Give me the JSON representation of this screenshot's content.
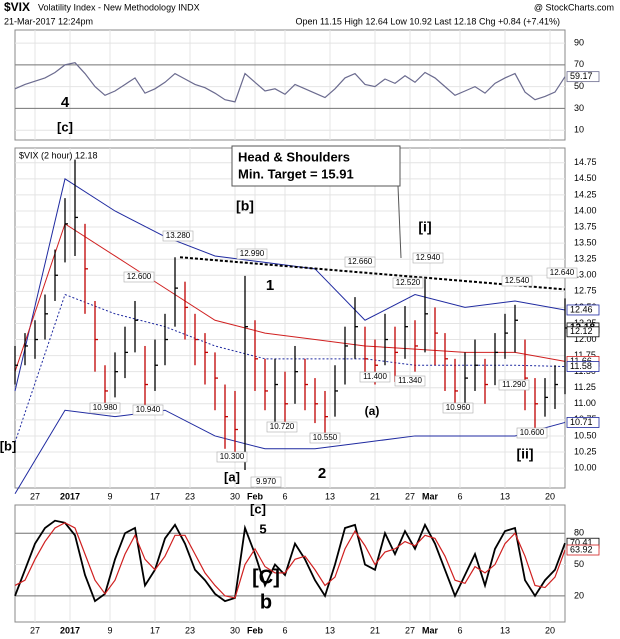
{
  "header": {
    "symbol": "$VIX",
    "name": "Volatility Index - New Methodology INDX",
    "source": "@ StockCharts.com",
    "date": "21-Mar-2017 12:24pm",
    "quote": "Open 11.15 High 12.64 Low 10.92 Last 12.18 Chg +0.84 (+7.41%)"
  },
  "chart_data": [
    {
      "type": "line",
      "xlim": [
        0,
        110
      ],
      "ylim": [
        1,
        102
      ],
      "yticks": [
        10,
        30,
        50,
        70,
        90
      ],
      "reference_lines": [
        70,
        30
      ],
      "grid": true,
      "x": [
        0,
        2,
        4,
        6,
        8,
        10,
        12,
        14,
        16,
        18,
        20,
        22,
        24,
        26,
        28,
        30,
        32,
        34,
        36,
        38,
        40,
        42,
        44,
        46,
        48,
        50,
        52,
        54,
        56,
        58,
        60,
        62,
        64,
        66,
        68,
        70,
        72,
        74,
        76,
        78,
        80,
        82,
        84,
        86,
        88,
        90,
        92,
        94,
        96,
        98,
        100,
        102,
        104,
        106,
        108,
        110
      ],
      "series": [
        {
          "color": "#6b6b8f",
          "values": [
            48,
            52,
            55,
            58,
            63,
            70,
            72,
            62,
            50,
            42,
            46,
            52,
            58,
            44,
            48,
            54,
            62,
            57,
            52,
            49,
            44,
            38,
            36,
            62,
            54,
            46,
            48,
            43,
            52,
            48,
            44,
            40,
            48,
            58,
            62,
            52,
            50,
            57,
            53,
            60,
            54,
            63,
            58,
            50,
            42,
            46,
            50,
            44,
            53,
            58,
            62,
            45,
            38,
            41,
            45,
            59.17
          ],
          "last_label": "59.17"
        }
      ],
      "waves": [
        {
          "text": "4",
          "color": "#9400d3"
        },
        {
          "text": "[c]",
          "color": "#c00000"
        }
      ]
    },
    {
      "type": "ohlc",
      "label": "$VIX (2 hour) 12.18",
      "xlim": [
        0,
        110
      ],
      "ylim": [
        9.69,
        14.98
      ],
      "grid": true,
      "yticks": [
        {
          "value": 10,
          "label": "10.00"
        },
        {
          "value": 10.25,
          "label": "10.25"
        },
        {
          "value": 10.5,
          "label": "10.50"
        },
        {
          "value": 10.75,
          "label": "10.75"
        },
        {
          "value": 11,
          "label": "11.00"
        },
        {
          "value": 11.25,
          "label": "11.25"
        },
        {
          "value": 11.5,
          "label": "11.50"
        },
        {
          "value": 11.75,
          "label": "11.75"
        },
        {
          "value": 12,
          "label": "12.00"
        },
        {
          "value": 12.25,
          "label": "12.25"
        },
        {
          "value": 12.5,
          "label": "12.50"
        },
        {
          "value": 12.75,
          "label": "12.75"
        },
        {
          "value": 13,
          "label": "13.00"
        },
        {
          "value": 13.25,
          "label": "13.25"
        },
        {
          "value": 13.5,
          "label": "13.50"
        },
        {
          "value": 13.75,
          "label": "13.75"
        },
        {
          "value": 14,
          "label": "14.00"
        },
        {
          "value": 14.25,
          "label": "14.25"
        },
        {
          "value": 14.5,
          "label": "14.50"
        },
        {
          "value": 14.75,
          "label": "14.75"
        }
      ],
      "xticks": [
        {
          "value": 4,
          "label": "27"
        },
        {
          "value": 11,
          "label": "2017"
        },
        {
          "value": 19,
          "label": "9"
        },
        {
          "value": 28,
          "label": "17"
        },
        {
          "value": 35,
          "label": "23"
        },
        {
          "value": 44,
          "label": "30"
        },
        {
          "value": 48,
          "label": "Feb"
        },
        {
          "value": 54,
          "label": "6"
        },
        {
          "value": 63,
          "label": "13"
        },
        {
          "value": 72,
          "label": "21"
        },
        {
          "value": 79,
          "label": "27"
        },
        {
          "value": 83,
          "label": "Mar"
        },
        {
          "value": 89,
          "label": "6"
        },
        {
          "value": 98,
          "label": "13"
        },
        {
          "value": 107,
          "label": "20"
        }
      ],
      "x": [
        0,
        2,
        4,
        6,
        8,
        10,
        12,
        14,
        16,
        18,
        20,
        22,
        24,
        26,
        28,
        30,
        32,
        34,
        36,
        38,
        40,
        42,
        44,
        46,
        48,
        50,
        52,
        54,
        56,
        58,
        60,
        62,
        64,
        66,
        68,
        70,
        72,
        74,
        76,
        78,
        80,
        82,
        84,
        86,
        88,
        90,
        92,
        94,
        96,
        98,
        100,
        102,
        104,
        106,
        108,
        110
      ],
      "high": [
        11.9,
        12.1,
        12.3,
        12.7,
        13.4,
        14.2,
        14.8,
        13.8,
        12.6,
        11.6,
        11.8,
        12.2,
        12.6,
        11.9,
        12.0,
        12.4,
        13.28,
        12.9,
        12.4,
        12.1,
        11.8,
        11.3,
        11.2,
        12.99,
        12.3,
        11.7,
        11.7,
        11.5,
        11.9,
        11.7,
        11.4,
        11.2,
        11.6,
        12.2,
        12.66,
        12.2,
        12.0,
        12.4,
        12.2,
        12.52,
        12.3,
        12.94,
        12.5,
        12.1,
        11.7,
        11.8,
        12.0,
        11.7,
        12.1,
        12.4,
        12.54,
        12.0,
        11.4,
        11.4,
        11.6,
        12.64
      ],
      "low": [
        11.3,
        11.6,
        11.7,
        12.0,
        12.6,
        13.2,
        13.3,
        12.4,
        11.5,
        10.98,
        11.1,
        11.4,
        11.8,
        10.94,
        11.2,
        11.6,
        12.2,
        12.0,
        11.6,
        11.3,
        10.9,
        10.3,
        10.2,
        9.97,
        11.2,
        10.9,
        10.72,
        10.7,
        11.0,
        10.9,
        10.7,
        10.55,
        10.8,
        11.3,
        11.7,
        11.4,
        11.3,
        11.6,
        11.34,
        11.7,
        11.5,
        11.8,
        11.6,
        11.2,
        10.96,
        11.0,
        11.2,
        11.0,
        11.29,
        11.7,
        11.8,
        10.9,
        10.6,
        10.8,
        10.92,
        11.15
      ],
      "close": [
        11.6,
        11.9,
        12.0,
        12.4,
        13.0,
        13.8,
        13.9,
        13.1,
        12.0,
        11.2,
        11.5,
        11.8,
        12.3,
        11.3,
        11.6,
        12.0,
        12.8,
        12.5,
        12.0,
        11.8,
        11.4,
        10.8,
        10.6,
        12.2,
        11.7,
        11.2,
        11.3,
        11.0,
        11.5,
        11.3,
        11.0,
        10.8,
        11.2,
        11.9,
        12.2,
        11.7,
        11.6,
        12.0,
        11.8,
        12.2,
        11.9,
        12.4,
        12.1,
        11.7,
        11.2,
        11.4,
        11.6,
        11.3,
        11.8,
        12.1,
        12.3,
        11.4,
        11.0,
        11.1,
        11.3,
        12.18
      ],
      "overlay_x": [
        0,
        10,
        20,
        30,
        40,
        50,
        60,
        70,
        80,
        90,
        100,
        110
      ],
      "overlays": [
        {
          "color": "#1f2aa0",
          "dashed": false,
          "values": [
            11.2,
            14.5,
            14.0,
            13.6,
            13.3,
            13.2,
            13.1,
            12.3,
            12.7,
            12.5,
            12.6,
            12.46
          ]
        },
        {
          "color": "#1f2aa0",
          "dashed": false,
          "values": [
            9.6,
            10.9,
            10.8,
            10.9,
            10.5,
            10.3,
            10.3,
            10.4,
            10.5,
            10.5,
            10.5,
            10.71
          ]
        },
        {
          "color": "#1f2aa0",
          "dashed": true,
          "values": [
            10.4,
            12.7,
            12.4,
            12.2,
            11.9,
            11.7,
            11.7,
            11.7,
            11.6,
            11.6,
            11.6,
            11.58
          ]
        },
        {
          "color": "#d02020",
          "dashed": false,
          "values": [
            11.5,
            13.8,
            13.3,
            12.8,
            12.3,
            12.1,
            12.0,
            11.9,
            11.85,
            11.8,
            11.8,
            11.66
          ]
        }
      ],
      "trendline": {
        "x": [
          33,
          110
        ],
        "values": [
          13.28,
          12.78
        ]
      },
      "right_labels": [
        {
          "value": 12.46,
          "label": "12.46",
          "color": "#1f2aa0"
        },
        {
          "value": 12.18,
          "label": "12.18",
          "color": "#000000"
        },
        {
          "value": 12.12,
          "label": "12.12",
          "color": "#000000"
        },
        {
          "value": 11.66,
          "label": "11.66",
          "color": "#d02020"
        },
        {
          "value": 11.58,
          "label": "11.58",
          "color": "#1f2aa0"
        },
        {
          "value": 10.71,
          "label": "10.71",
          "color": "#1f2aa0"
        }
      ],
      "annotations": [
        "12.600",
        "10.980",
        "10.940",
        "13.280",
        "12.990",
        "10.300",
        "9.970",
        "10.720",
        "10.550",
        "12.660",
        "11.400",
        "12.520",
        "11.340",
        "12.940",
        "10.960",
        "12.540",
        "11.290",
        "10.600",
        "12.640"
      ],
      "callout": [
        "Head & Shoulders",
        "Min. Target = 15.91"
      ],
      "waves": [
        {
          "text": "[b]",
          "color": "#c00000"
        },
        {
          "text": "[a]",
          "color": "#c00000"
        },
        {
          "text": "1",
          "color": "#9400d3"
        },
        {
          "text": "2",
          "color": "#9400d3"
        },
        {
          "text": "[i]",
          "color": "#c00000"
        },
        {
          "text": "(a)",
          "color": "#008000"
        },
        {
          "text": "[ii]",
          "color": "#c00000"
        },
        {
          "text": "[b]",
          "color": "#c00000"
        }
      ]
    },
    {
      "type": "line",
      "xlim": [
        0,
        110
      ],
      "ylim": [
        -5,
        107
      ],
      "yticks": [
        20,
        50,
        80
      ],
      "reference_lines": [
        80,
        20
      ],
      "grid": true,
      "xticks": [
        {
          "value": 4,
          "label": "27"
        },
        {
          "value": 11,
          "label": "2017"
        },
        {
          "value": 19,
          "label": "9"
        },
        {
          "value": 28,
          "label": "17"
        },
        {
          "value": 35,
          "label": "23"
        },
        {
          "value": 44,
          "label": "30"
        },
        {
          "value": 48,
          "label": "Feb"
        },
        {
          "value": 54,
          "label": "6"
        },
        {
          "value": 63,
          "label": "13"
        },
        {
          "value": 72,
          "label": "21"
        },
        {
          "value": 79,
          "label": "27"
        },
        {
          "value": 83,
          "label": "Mar"
        },
        {
          "value": 89,
          "label": "6"
        },
        {
          "value": 98,
          "label": "13"
        },
        {
          "value": 107,
          "label": "20"
        }
      ],
      "x": [
        0,
        2,
        4,
        6,
        8,
        10,
        12,
        14,
        16,
        18,
        20,
        22,
        24,
        26,
        28,
        30,
        32,
        34,
        36,
        38,
        40,
        42,
        44,
        46,
        48,
        50,
        52,
        54,
        56,
        58,
        60,
        62,
        64,
        66,
        68,
        70,
        72,
        74,
        76,
        78,
        80,
        82,
        84,
        86,
        88,
        90,
        92,
        94,
        96,
        98,
        100,
        102,
        104,
        106,
        108,
        110
      ],
      "series": [
        {
          "color": "#000000",
          "values": [
            20,
            45,
            70,
            85,
            92,
            90,
            78,
            40,
            15,
            22,
            55,
            80,
            85,
            30,
            45,
            75,
            88,
            70,
            45,
            35,
            22,
            15,
            18,
            85,
            60,
            30,
            50,
            40,
            70,
            55,
            35,
            20,
            50,
            85,
            88,
            50,
            45,
            80,
            60,
            82,
            65,
            88,
            70,
            45,
            20,
            40,
            60,
            30,
            65,
            82,
            85,
            35,
            20,
            35,
            45,
            70.41
          ],
          "last_label": "70.41"
        },
        {
          "color": "#d02020",
          "values": [
            30,
            35,
            55,
            72,
            85,
            90,
            85,
            60,
            35,
            22,
            35,
            60,
            78,
            55,
            45,
            58,
            78,
            78,
            60,
            42,
            30,
            20,
            18,
            50,
            65,
            48,
            42,
            42,
            55,
            58,
            45,
            30,
            38,
            65,
            82,
            68,
            50,
            62,
            65,
            72,
            68,
            78,
            75,
            58,
            35,
            32,
            48,
            42,
            50,
            70,
            80,
            58,
            30,
            28,
            38,
            63.92
          ],
          "last_label": "63.92"
        }
      ],
      "waves": [
        {
          "text": "[c]",
          "color": "#c00000"
        },
        {
          "text": "5",
          "color": "#9400d3"
        },
        {
          "text": "[C]",
          "color": "#0000cc"
        },
        {
          "text": "b",
          "color": "#e00000"
        }
      ]
    }
  ]
}
